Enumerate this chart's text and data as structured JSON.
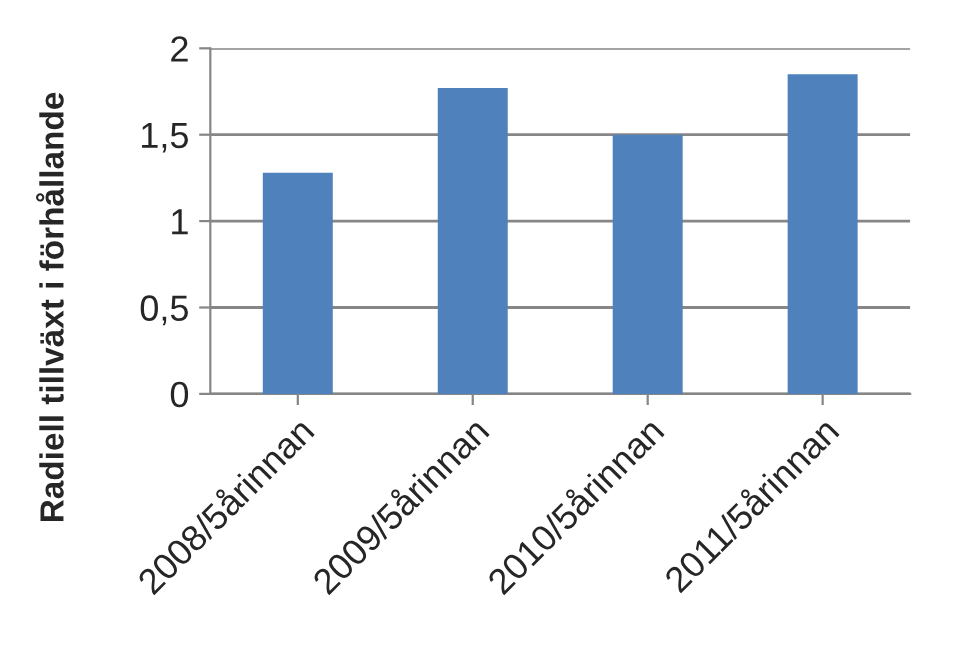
{
  "chart_data": {
    "type": "bar",
    "ylabel": "Radiell tillväxt i förhållande",
    "categories": [
      "2008/5årinnan",
      "2009/5årinnan",
      "2010/5årinnan",
      "2011/5årinnan"
    ],
    "values": [
      1.28,
      1.77,
      1.5,
      1.85
    ],
    "color": "#4f81bd",
    "ylim": [
      0,
      2
    ],
    "yticks": [
      0,
      {
        "value": 0.5,
        "label": "0,5"
      },
      1,
      {
        "value": 1.5,
        "label": "1,5"
      },
      2
    ],
    "grid": "y"
  }
}
